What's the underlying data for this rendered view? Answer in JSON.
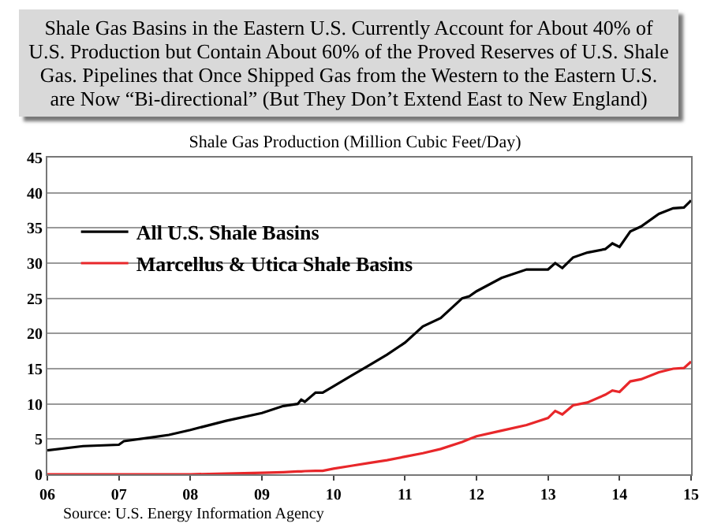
{
  "chart_data": {
    "type": "line",
    "title": "Shale Gas Basins in the Eastern U.S.  Currently Account for About 40% of U.S. Production but Contain About 60% of the Proved Reserves of  U.S. Shale Gas. Pipelines that Once Shipped Gas from the Western to the Eastern U.S. are Now “Bi-directional” (But They Don’t Extend East to New England)",
    "subtitle": "Shale Gas Production (Million Cubic Feet/Day)",
    "annotations": [
      "Source: U.S. Energy Information Agency"
    ],
    "x": [
      2006,
      2006.5,
      2007,
      2007.07,
      2007.5,
      2007.7,
      2008,
      2008.5,
      2009,
      2009.3,
      2009.5,
      2009.55,
      2009.6,
      2009.75,
      2009.85,
      2010,
      2010.25,
      2010.5,
      2010.75,
      2011,
      2011.25,
      2011.5,
      2011.8,
      2011.9,
      2012,
      2012.35,
      2012.7,
      2013,
      2013.1,
      2013.2,
      2013.35,
      2013.55,
      2013.8,
      2013.9,
      2014,
      2014.15,
      2014.3,
      2014.55,
      2014.75,
      2014.9,
      2015
    ],
    "series": [
      {
        "name": "All U.S. Shale Basins",
        "color": "#000000",
        "values": [
          3.4,
          4,
          4.2,
          4.7,
          5.3,
          5.6,
          6.3,
          7.6,
          8.7,
          9.7,
          10,
          10.6,
          10.3,
          11.6,
          11.6,
          12.5,
          14,
          15.5,
          17,
          18.7,
          21,
          22.2,
          25,
          25.3,
          26,
          27.9,
          29.1,
          29.1,
          30,
          29.3,
          30.8,
          31.5,
          32,
          32.8,
          32.3,
          34.5,
          35.2,
          37,
          37.8,
          37.9,
          38.9
        ]
      },
      {
        "name": "Marcellus & Utica Shale Basins",
        "color": "#e8272a",
        "values": [
          0,
          0,
          0,
          0,
          0,
          0,
          0,
          0.1,
          0.2,
          0.3,
          0.4,
          0.4,
          0.45,
          0.5,
          0.5,
          0.8,
          1.2,
          1.6,
          2,
          2.5,
          3,
          3.6,
          4.6,
          5,
          5.4,
          6.2,
          7,
          8,
          9,
          8.5,
          9.8,
          10.2,
          11.3,
          11.9,
          11.7,
          13.2,
          13.5,
          14.5,
          15,
          15.1,
          16
        ]
      }
    ],
    "xlim": [
      2006,
      2015
    ],
    "xticks": [
      {
        "value": 2006,
        "label": "06"
      },
      {
        "value": 2007,
        "label": "07"
      },
      {
        "value": 2008,
        "label": "08"
      },
      {
        "value": 2009,
        "label": "09"
      },
      {
        "value": 2010,
        "label": "10"
      },
      {
        "value": 2011,
        "label": "11"
      },
      {
        "value": 2012,
        "label": "12"
      },
      {
        "value": 2013,
        "label": "13"
      },
      {
        "value": 2014,
        "label": "14"
      },
      {
        "value": 2015,
        "label": "15"
      }
    ],
    "ylim": [
      0,
      45
    ],
    "yticks": [
      0,
      5,
      10,
      15,
      20,
      25,
      30,
      35,
      40,
      45
    ],
    "grid": "y",
    "legend": "top left"
  }
}
